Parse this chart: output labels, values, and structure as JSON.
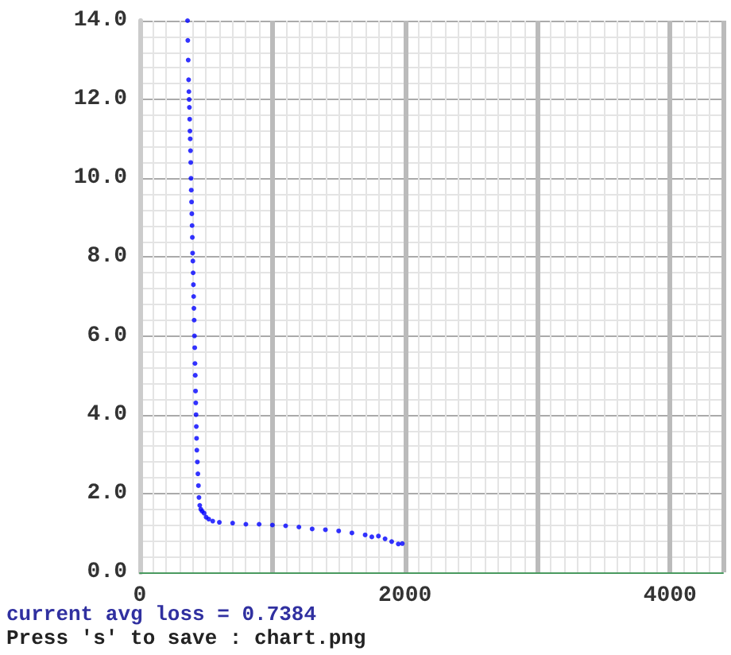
{
  "chart_data": {
    "type": "scatter",
    "marker": "circle",
    "grid": true,
    "xlim": [
      0,
      4400
    ],
    "xticks": [
      0,
      2000,
      4000
    ],
    "ylim": [
      0,
      14
    ],
    "yticks": [
      {
        "value": 0,
        "label": "0.0"
      },
      {
        "value": 2,
        "label": "2.0"
      },
      {
        "value": 4,
        "label": "4.0"
      },
      {
        "value": 6,
        "label": "6.0"
      },
      {
        "value": 8,
        "label": "8.0"
      },
      {
        "value": 10,
        "label": "10.0"
      },
      {
        "value": 12,
        "label": "12.0"
      },
      {
        "value": 14,
        "label": "14.0"
      }
    ],
    "series": [
      {
        "color": "#0000ff",
        "x": [
          360,
          362,
          365,
          368,
          370,
          372,
          374,
          376,
          378,
          380,
          382,
          384,
          386,
          388,
          390,
          392,
          394,
          396,
          398,
          400,
          402,
          404,
          406,
          408,
          410,
          412,
          414,
          416,
          418,
          420,
          422,
          424,
          426,
          428,
          430,
          434,
          438,
          442,
          446,
          452,
          460,
          470,
          485,
          500,
          520,
          550,
          600,
          700,
          800,
          900,
          1000,
          1100,
          1200,
          1300,
          1400,
          1500,
          1600,
          1700,
          1750,
          1800,
          1850,
          1900,
          1950,
          1980
        ],
        "values": [
          14.0,
          13.5,
          13.0,
          12.5,
          12.2,
          12.0,
          11.8,
          11.5,
          11.2,
          11.0,
          10.7,
          10.4,
          10.0,
          9.7,
          9.4,
          9.1,
          8.8,
          8.5,
          8.1,
          7.9,
          7.6,
          7.3,
          7.0,
          6.7,
          6.4,
          6.0,
          5.7,
          5.3,
          5.0,
          4.6,
          4.3,
          4.0,
          3.7,
          3.4,
          3.1,
          2.8,
          2.5,
          2.2,
          1.9,
          1.7,
          1.6,
          1.55,
          1.5,
          1.4,
          1.35,
          1.3,
          1.27,
          1.25,
          1.22,
          1.22,
          1.2,
          1.18,
          1.15,
          1.1,
          1.08,
          1.05,
          1.0,
          0.95,
          0.9,
          0.92,
          0.85,
          0.78,
          0.72,
          0.73
        ]
      }
    ],
    "annotations": [
      "current avg loss = 0.7384",
      "Press 's' to save : chart.png"
    ]
  }
}
